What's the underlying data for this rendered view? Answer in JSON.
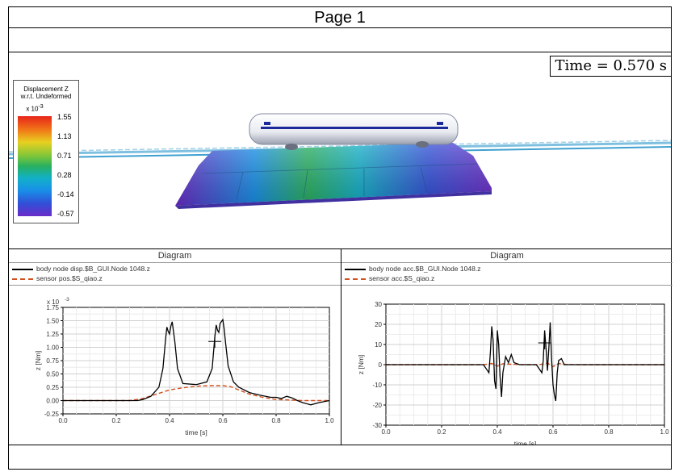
{
  "page": {
    "title": "Page 1"
  },
  "animation": {
    "time_label": "Time = 0.570 s",
    "legend": {
      "title_line1": "Displacement Z",
      "title_line2": "w.r.t. Undeformed",
      "scale": "x 10",
      "scale_exp": "-3",
      "ticks": [
        "1.55",
        "1.13",
        "0.71",
        "0.28",
        "-0.14",
        "-0.57"
      ]
    }
  },
  "diagrams": [
    {
      "title": "Diagram",
      "legend": [
        "body node disp.$B_GUI.Node 1048.z",
        "sensor pos.$S_qiao.z"
      ],
      "chart_data": {
        "type": "line",
        "xlabel": "time [s]",
        "ylabel": "z [Nm]",
        "y_scale": "x 10",
        "y_scale_exp": "-3",
        "xlim": [
          0,
          1
        ],
        "ylim": [
          -0.25,
          1.75
        ],
        "xticks": [
          "0.0",
          "0.2",
          "0.4",
          "0.6",
          "0.8",
          "1.0"
        ],
        "yticks": [
          "1.75",
          "1.50",
          "1.25",
          "1.00",
          "0.75",
          "0.50",
          "0.25",
          "0.00",
          "-0.25"
        ],
        "grid": true,
        "series": [
          {
            "name": "body node disp.$B_GUI.Node 1048.z",
            "color": "#000000",
            "style": "solid",
            "x": [
              0,
              0.28,
              0.3,
              0.33,
              0.36,
              0.375,
              0.385,
              0.39,
              0.395,
              0.4,
              0.405,
              0.41,
              0.42,
              0.43,
              0.45,
              0.5,
              0.54,
              0.56,
              0.57,
              0.575,
              0.58,
              0.585,
              0.59,
              0.6,
              0.605,
              0.61,
              0.62,
              0.64,
              0.66,
              0.7,
              0.74,
              0.78,
              0.8,
              0.82,
              0.84,
              0.86,
              0.88,
              0.9,
              0.93,
              0.96,
              1.0
            ],
            "y": [
              0,
              0,
              0.02,
              0.08,
              0.25,
              0.6,
              1.15,
              1.38,
              1.3,
              1.25,
              1.4,
              1.48,
              1.1,
              0.6,
              0.32,
              0.3,
              0.35,
              0.6,
              1.2,
              1.42,
              1.32,
              1.28,
              1.45,
              1.52,
              1.35,
              1.1,
              0.65,
              0.35,
              0.25,
              0.15,
              0.1,
              0.06,
              0.06,
              0.04,
              0.08,
              0.05,
              0.0,
              -0.04,
              -0.08,
              -0.04,
              0.0
            ]
          },
          {
            "name": "sensor pos.$S_qiao.z",
            "color": "#d25020",
            "style": "dashed",
            "x": [
              0,
              0.25,
              0.3,
              0.35,
              0.4,
              0.45,
              0.5,
              0.55,
              0.6,
              0.63,
              0.66,
              0.7,
              0.75,
              0.8,
              0.85,
              0.9,
              0.95,
              1.0
            ],
            "y": [
              0,
              0,
              0.04,
              0.12,
              0.2,
              0.24,
              0.27,
              0.28,
              0.28,
              0.26,
              0.2,
              0.12,
              0.06,
              0.02,
              0.01,
              0,
              0,
              0
            ]
          }
        ],
        "annotation": "cross-hair marker near t = 0.57 s"
      }
    },
    {
      "title": "Diagram",
      "legend": [
        "body node acc.$B_GUI.Node 1048.z",
        "sensor acc.$S_qiao.z"
      ],
      "chart_data": {
        "type": "line",
        "xlabel": "time [s]",
        "ylabel": "z [Nm]",
        "xlim": [
          0,
          1
        ],
        "ylim": [
          -30,
          30
        ],
        "xticks": [
          "0.0",
          "0.2",
          "0.4",
          "0.6",
          "0.8",
          "1.0"
        ],
        "yticks": [
          "30",
          "20",
          "10",
          "0",
          "-10",
          "-20",
          "-30"
        ],
        "grid": true,
        "series": [
          {
            "name": "body node acc.$B_GUI.Node 1048.z",
            "color": "#000000",
            "style": "solid",
            "x": [
              0,
              0.3,
              0.35,
              0.36,
              0.37,
              0.375,
              0.38,
              0.385,
              0.39,
              0.395,
              0.4,
              0.405,
              0.41,
              0.415,
              0.42,
              0.43,
              0.44,
              0.45,
              0.46,
              0.48,
              0.5,
              0.52,
              0.54,
              0.55,
              0.56,
              0.565,
              0.57,
              0.575,
              0.58,
              0.585,
              0.59,
              0.595,
              0.6,
              0.605,
              0.61,
              0.615,
              0.62,
              0.63,
              0.64,
              0.65,
              0.7,
              0.8,
              1.0
            ],
            "y": [
              0,
              0,
              0,
              -2,
              -4,
              6,
              19,
              12,
              -8,
              -12,
              17,
              10,
              -6,
              -16,
              -4,
              4,
              1,
              5,
              1,
              0,
              0,
              0,
              0,
              -2,
              -4,
              2,
              17,
              8,
              -3,
              8,
              21,
              2,
              -10,
              -15,
              -18,
              -4,
              2,
              3,
              0,
              0,
              0,
              0,
              0
            ]
          },
          {
            "name": "sensor acc.$S_qiao.z",
            "color": "#d25020",
            "style": "dashed",
            "x": [
              0,
              0.3,
              0.35,
              0.38,
              0.4,
              0.42,
              0.45,
              0.5,
              0.55,
              0.58,
              0.6,
              0.62,
              0.65,
              0.7,
              1.0
            ],
            "y": [
              0,
              0,
              0,
              0.6,
              -0.8,
              0.5,
              0.2,
              0,
              0,
              0.8,
              -1,
              0.6,
              0.1,
              0,
              0
            ]
          }
        ],
        "annotation": "cross-hair marker near t = 0.57 s"
      }
    }
  ]
}
